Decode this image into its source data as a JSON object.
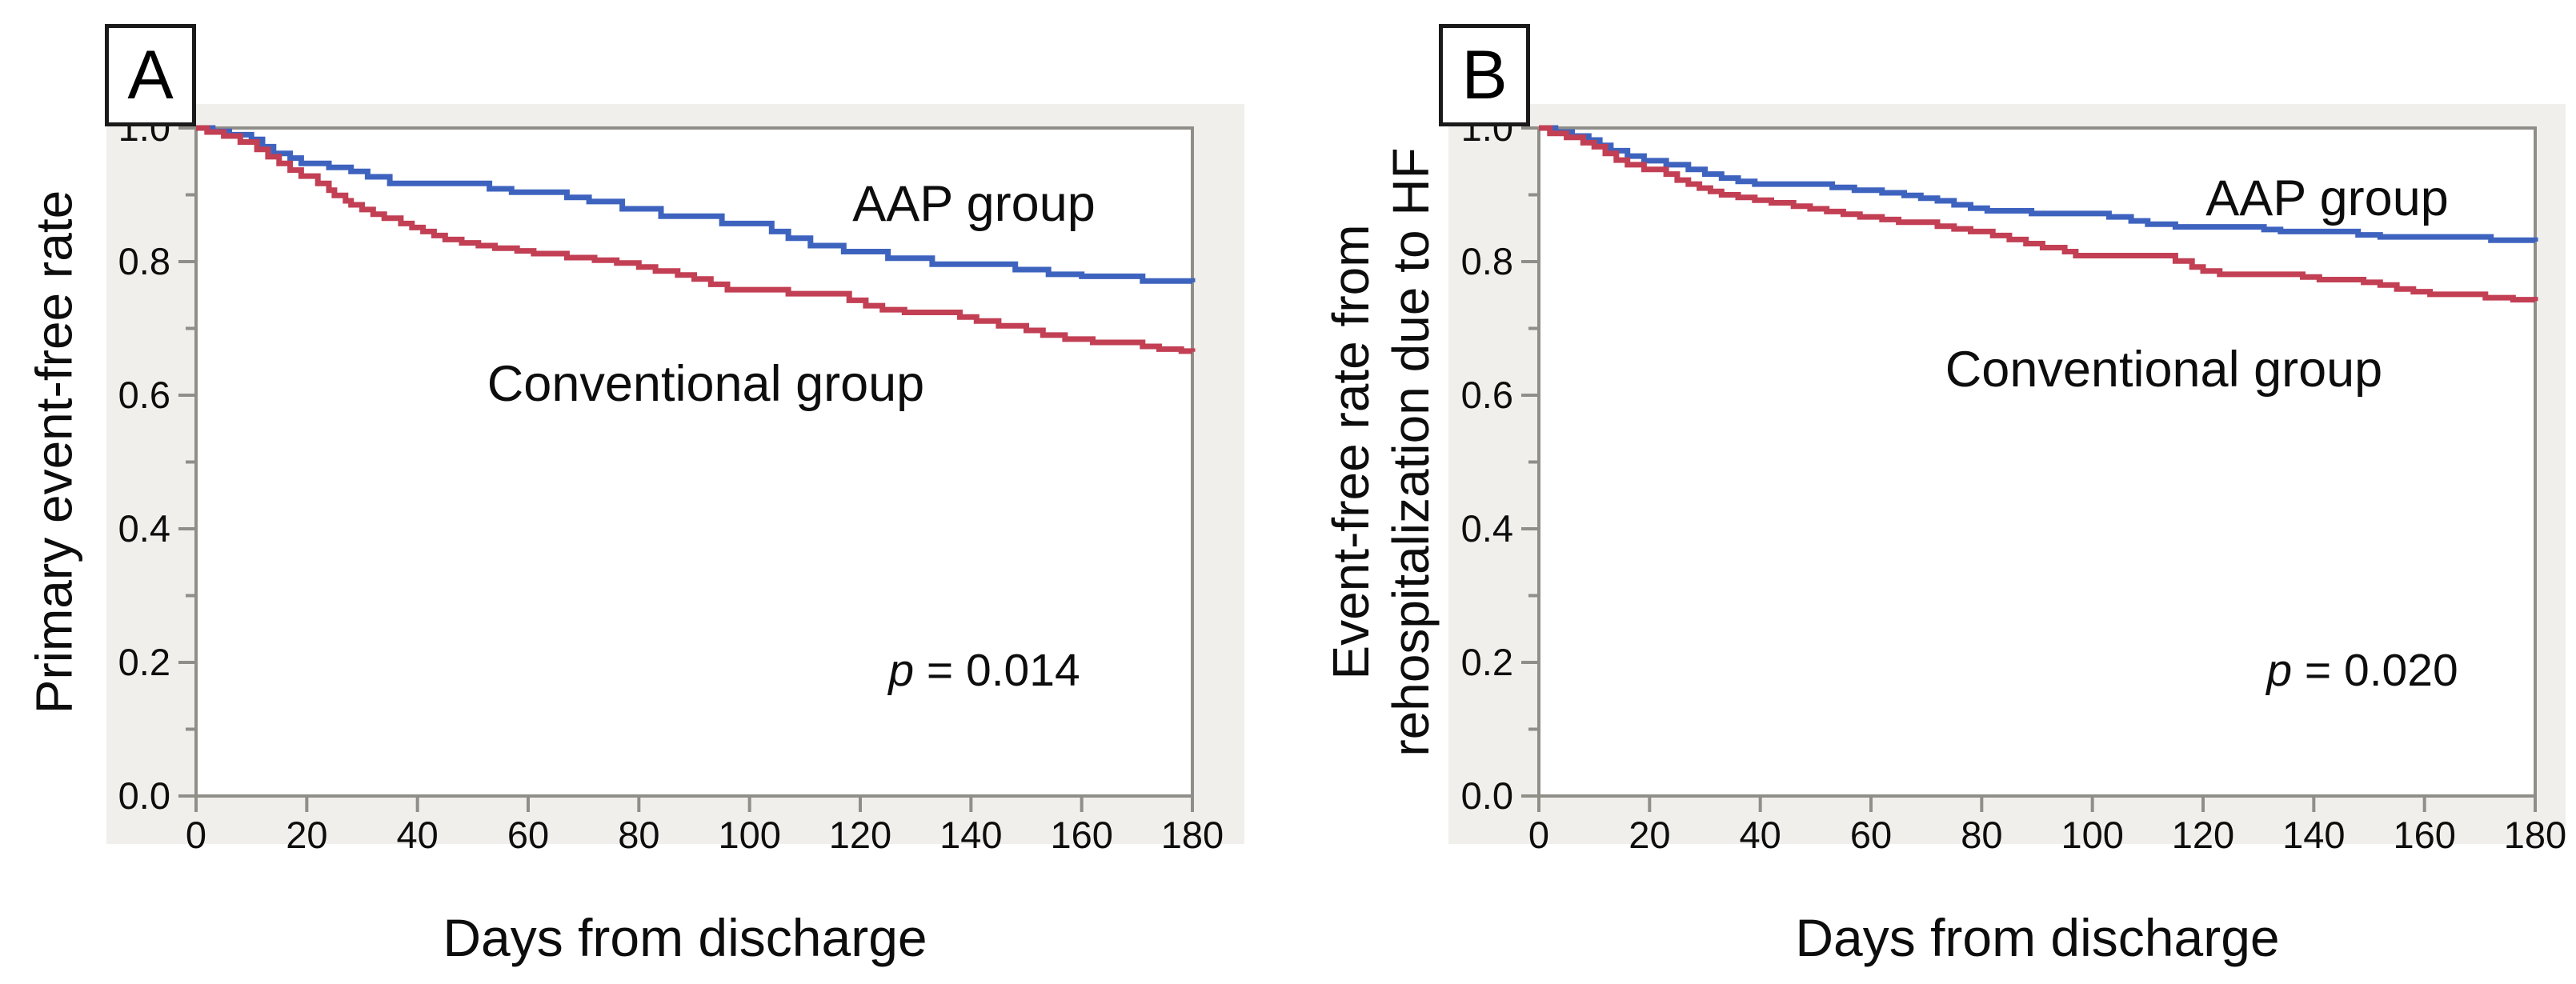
{
  "colors": {
    "aap_blue": "#3e63bf",
    "conventional_red": "#c23f54",
    "plot_background": "#f0efeb",
    "frame_gray": "#8f8e88",
    "text_black": "#0d0d0d"
  },
  "chart_data": [
    {
      "type": "line",
      "subtype": "kaplan-meier-step",
      "panel_label": "A",
      "title": "",
      "xlabel": "Days from discharge",
      "ylabel": "Primary event-free rate",
      "ylabel_lines": [
        "Primary event-free rate"
      ],
      "xlim": [
        0,
        180
      ],
      "ylim": [
        0.0,
        1.0
      ],
      "xticks": [
        0,
        20,
        40,
        60,
        80,
        100,
        120,
        140,
        160,
        180
      ],
      "yticks_major": [
        0.0,
        0.2,
        0.4,
        0.6,
        0.8,
        1.0
      ],
      "yticks_minor": [
        0.1,
        0.3,
        0.5,
        0.7,
        0.9
      ],
      "grid": false,
      "legend_position": "inline-annotations",
      "annotations": {
        "p_symbol": "p",
        "p_text": " = 0.014",
        "p_value_full": "p = 0.014"
      },
      "series": [
        {
          "name": "AAP group",
          "color": "#3e63bf",
          "points": [
            [
              0,
              1
            ],
            [
              3,
              0.995
            ],
            [
              6,
              0.99
            ],
            [
              10,
              0.983
            ],
            [
              12,
              0.972
            ],
            [
              14,
              0.962
            ],
            [
              17,
              0.955
            ],
            [
              19,
              0.947
            ],
            [
              24,
              0.941
            ],
            [
              28,
              0.935
            ],
            [
              31,
              0.927
            ],
            [
              35,
              0.917
            ],
            [
              53,
              0.909
            ],
            [
              57,
              0.904
            ],
            [
              67,
              0.896
            ],
            [
              71,
              0.89
            ],
            [
              77,
              0.879
            ],
            [
              84,
              0.868
            ],
            [
              95,
              0.857
            ],
            [
              104,
              0.845
            ],
            [
              107,
              0.835
            ],
            [
              111,
              0.824
            ],
            [
              117,
              0.815
            ],
            [
              125,
              0.805
            ],
            [
              133,
              0.796
            ],
            [
              148,
              0.788
            ],
            [
              154,
              0.781
            ],
            [
              160,
              0.778
            ],
            [
              171,
              0.771
            ],
            [
              180,
              0.769
            ]
          ]
        },
        {
          "name": "Conventional group",
          "color": "#c23f54",
          "points": [
            [
              0,
              1
            ],
            [
              2,
              0.994
            ],
            [
              5,
              0.988
            ],
            [
              8,
              0.979
            ],
            [
              11,
              0.968
            ],
            [
              13,
              0.957
            ],
            [
              15,
              0.947
            ],
            [
              17,
              0.937
            ],
            [
              19,
              0.928
            ],
            [
              22,
              0.917
            ],
            [
              24,
              0.907
            ],
            [
              25,
              0.899
            ],
            [
              27,
              0.891
            ],
            [
              28,
              0.885
            ],
            [
              30,
              0.878
            ],
            [
              32,
              0.871
            ],
            [
              34,
              0.865
            ],
            [
              37,
              0.857
            ],
            [
              39,
              0.851
            ],
            [
              41,
              0.845
            ],
            [
              43,
              0.839
            ],
            [
              45,
              0.833
            ],
            [
              48,
              0.828
            ],
            [
              51,
              0.824
            ],
            [
              54,
              0.82
            ],
            [
              58,
              0.816
            ],
            [
              61,
              0.812
            ],
            [
              67,
              0.806
            ],
            [
              72,
              0.802
            ],
            [
              76,
              0.798
            ],
            [
              80,
              0.792
            ],
            [
              83,
              0.786
            ],
            [
              87,
              0.78
            ],
            [
              90,
              0.774
            ],
            [
              93,
              0.766
            ],
            [
              96,
              0.758
            ],
            [
              107,
              0.752
            ],
            [
              118,
              0.742
            ],
            [
              121,
              0.734
            ],
            [
              124,
              0.728
            ],
            [
              128,
              0.724
            ],
            [
              138,
              0.717
            ],
            [
              141,
              0.711
            ],
            [
              145,
              0.704
            ],
            [
              150,
              0.697
            ],
            [
              153,
              0.69
            ],
            [
              157,
              0.684
            ],
            [
              162,
              0.679
            ],
            [
              171,
              0.673
            ],
            [
              174,
              0.669
            ],
            [
              178,
              0.666
            ],
            [
              180,
              0.665
            ]
          ]
        }
      ]
    },
    {
      "type": "line",
      "subtype": "kaplan-meier-step",
      "panel_label": "B",
      "title": "",
      "xlabel": "Days from discharge",
      "ylabel": "Event-free rate from rehospitalization due to HF",
      "ylabel_lines": [
        "Event-free rate from",
        "rehospitalization due to HF"
      ],
      "xlim": [
        0,
        180
      ],
      "ylim": [
        0.0,
        1.0
      ],
      "xticks": [
        0,
        20,
        40,
        60,
        80,
        100,
        120,
        140,
        160,
        180
      ],
      "yticks_major": [
        0.0,
        0.2,
        0.4,
        0.6,
        0.8,
        1.0
      ],
      "yticks_minor": [
        0.1,
        0.3,
        0.5,
        0.7,
        0.9
      ],
      "grid": false,
      "legend_position": "inline-annotations",
      "annotations": {
        "p_symbol": "p",
        "p_text": " = 0.020",
        "p_value_full": "p = 0.020"
      },
      "series": [
        {
          "name": "AAP group",
          "color": "#3e63bf",
          "points": [
            [
              0,
              1
            ],
            [
              3,
              0.994
            ],
            [
              6,
              0.988
            ],
            [
              9,
              0.982
            ],
            [
              11,
              0.974
            ],
            [
              13,
              0.966
            ],
            [
              16,
              0.958
            ],
            [
              19,
              0.951
            ],
            [
              23,
              0.945
            ],
            [
              27,
              0.938
            ],
            [
              30,
              0.931
            ],
            [
              33,
              0.925
            ],
            [
              36,
              0.92
            ],
            [
              39,
              0.916
            ],
            [
              53,
              0.911
            ],
            [
              57,
              0.907
            ],
            [
              62,
              0.903
            ],
            [
              66,
              0.899
            ],
            [
              69,
              0.895
            ],
            [
              72,
              0.891
            ],
            [
              75,
              0.885
            ],
            [
              78,
              0.88
            ],
            [
              81,
              0.876
            ],
            [
              89,
              0.872
            ],
            [
              103,
              0.867
            ],
            [
              107,
              0.861
            ],
            [
              110,
              0.856
            ],
            [
              115,
              0.852
            ],
            [
              131,
              0.848
            ],
            [
              134,
              0.845
            ],
            [
              148,
              0.84
            ],
            [
              152,
              0.837
            ],
            [
              172,
              0.832
            ],
            [
              180,
              0.83
            ]
          ]
        },
        {
          "name": "Conventional group",
          "color": "#c23f54",
          "points": [
            [
              0,
              1
            ],
            [
              2,
              0.992
            ],
            [
              5,
              0.986
            ],
            [
              8,
              0.978
            ],
            [
              10,
              0.972
            ],
            [
              12,
              0.962
            ],
            [
              14,
              0.952
            ],
            [
              16,
              0.945
            ],
            [
              19,
              0.938
            ],
            [
              23,
              0.931
            ],
            [
              25,
              0.922
            ],
            [
              27,
              0.916
            ],
            [
              29,
              0.91
            ],
            [
              31,
              0.905
            ],
            [
              33,
              0.9
            ],
            [
              36,
              0.896
            ],
            [
              39,
              0.892
            ],
            [
              42,
              0.888
            ],
            [
              46,
              0.883
            ],
            [
              49,
              0.879
            ],
            [
              52,
              0.875
            ],
            [
              55,
              0.871
            ],
            [
              58,
              0.867
            ],
            [
              62,
              0.863
            ],
            [
              65,
              0.859
            ],
            [
              72,
              0.853
            ],
            [
              75,
              0.849
            ],
            [
              78,
              0.845
            ],
            [
              82,
              0.839
            ],
            [
              85,
              0.833
            ],
            [
              88,
              0.827
            ],
            [
              91,
              0.821
            ],
            [
              95,
              0.815
            ],
            [
              97,
              0.809
            ],
            [
              115,
              0.801
            ],
            [
              118,
              0.792
            ],
            [
              120,
              0.786
            ],
            [
              123,
              0.781
            ],
            [
              138,
              0.777
            ],
            [
              141,
              0.773
            ],
            [
              149,
              0.769
            ],
            [
              152,
              0.765
            ],
            [
              155,
              0.759
            ],
            [
              158,
              0.755
            ],
            [
              161,
              0.751
            ],
            [
              171,
              0.746
            ],
            [
              176,
              0.743
            ],
            [
              180,
              0.741
            ]
          ]
        }
      ]
    }
  ]
}
